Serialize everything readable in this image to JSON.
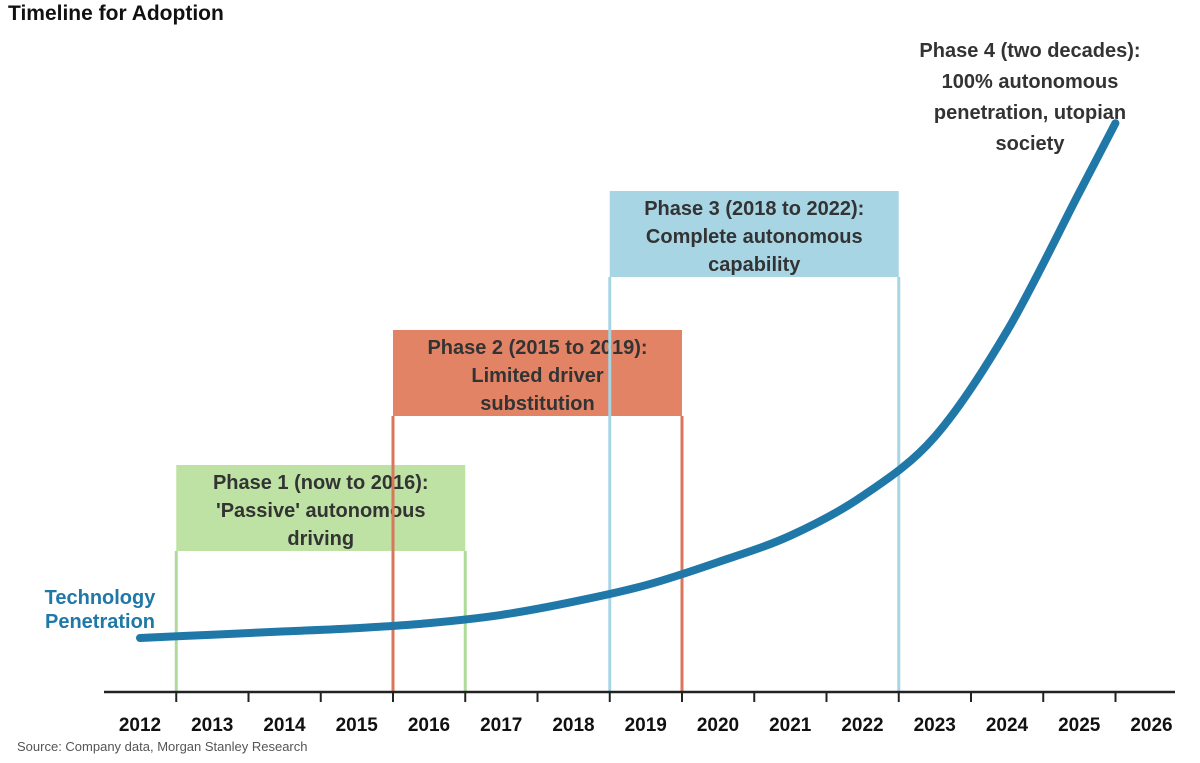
{
  "chart_data": {
    "type": "line",
    "title": "Timeline for Adoption",
    "source": "Source: Company data, Morgan Stanley Research",
    "x_ticks": [
      "2012",
      "2013",
      "2014",
      "2015",
      "2016",
      "2017",
      "2018",
      "2019",
      "2020",
      "2021",
      "2022",
      "2023",
      "2024",
      "2025",
      "2026"
    ],
    "x_range": [
      2012,
      2026
    ],
    "series": [
      {
        "name": "Technology Penetration",
        "color": "#1f78a8",
        "x": [
          2012,
          2013,
          2014,
          2015,
          2016,
          2017,
          2018,
          2019,
          2020,
          2021,
          2022,
          2023,
          2024,
          2025,
          2025.5
        ],
        "y": [
          0,
          0.01,
          0.02,
          0.03,
          0.045,
          0.07,
          0.11,
          0.16,
          0.23,
          0.31,
          0.43,
          0.61,
          0.93,
          1.35,
          1.56
        ]
      }
    ],
    "phases": [
      {
        "lines": [
          "Phase 1 (now to 2016):",
          "'Passive' autonomous",
          "driving"
        ],
        "start": 2012,
        "end": 2016,
        "level": 1,
        "fill": "#bde2a4",
        "border": "#aedb9a"
      },
      {
        "lines": [
          "Phase 2 (2015 to 2019):",
          "Limited driver",
          "substitution"
        ],
        "start": 2015,
        "end": 2019,
        "level": 2,
        "fill": "#e28366",
        "border": "#d9775d"
      },
      {
        "lines": [
          "Phase 3 (2018 to 2022):",
          "Complete autonomous",
          "capability"
        ],
        "start": 2018,
        "end": 2022,
        "level": 3,
        "fill": "#a7d5e4",
        "border": "#a7d5e4"
      },
      {
        "lines": [
          "Phase 4 (two decades):",
          "100% autonomous",
          "penetration, utopian",
          "society"
        ],
        "start": 2024.5,
        "end": 2026,
        "level": 4,
        "fill": "none",
        "border": "none"
      }
    ],
    "axis_color": "#222222",
    "grid": false
  }
}
